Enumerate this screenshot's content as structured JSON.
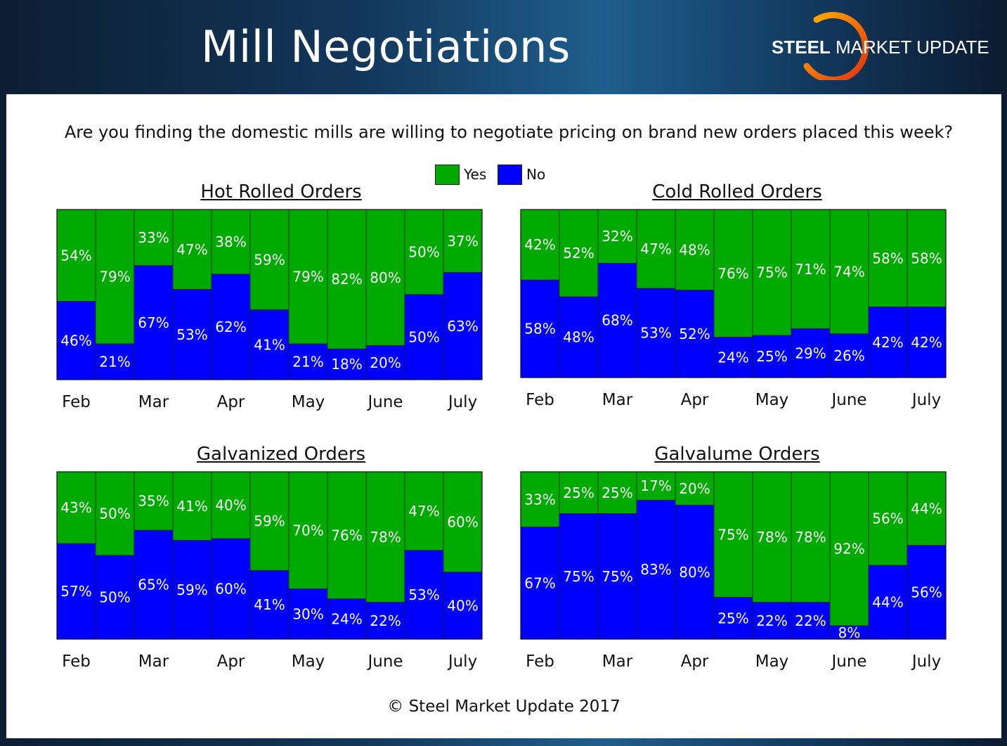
{
  "slide": {
    "title": "Mill Negotiations",
    "logo_bold": "STEEL",
    "logo_rest": " MARKET UPDATE"
  },
  "question": "Are you finding the domestic mills are willing to negotiate pricing on brand new orders placed this week?",
  "legend": {
    "yes_label": "Yes",
    "no_label": "No"
  },
  "copyright": "© Steel Market Update 2017",
  "colors": {
    "yes": "#00AA00",
    "no": "#0000FF",
    "yes_border": "#1f4d1f",
    "no_border": "#1f1f4d"
  },
  "chart_data": [
    {
      "type": "bar",
      "stacked": true,
      "title": "Hot Rolled Orders",
      "month_labels": [
        "Feb",
        "Mar",
        "Apr",
        "May",
        "June",
        "July"
      ],
      "series": [
        {
          "name": "No",
          "values": [
            46,
            21,
            67,
            53,
            62,
            41,
            21,
            18,
            20,
            50,
            63
          ]
        },
        {
          "name": "Yes",
          "values": [
            54,
            79,
            33,
            47,
            38,
            59,
            79,
            82,
            80,
            50,
            37
          ]
        }
      ],
      "ylim": [
        0,
        100
      ]
    },
    {
      "type": "bar",
      "stacked": true,
      "title": "Cold Rolled Orders",
      "month_labels": [
        "Feb",
        "Mar",
        "Apr",
        "May",
        "June",
        "July"
      ],
      "series": [
        {
          "name": "No",
          "values": [
            58,
            48,
            68,
            53,
            52,
            24,
            25,
            29,
            26,
            42,
            42
          ]
        },
        {
          "name": "Yes",
          "values": [
            42,
            52,
            32,
            47,
            48,
            76,
            75,
            71,
            74,
            58,
            58
          ]
        }
      ],
      "ylim": [
        0,
        100
      ]
    },
    {
      "type": "bar",
      "stacked": true,
      "title": "Galvanized Orders",
      "month_labels": [
        "Feb",
        "Mar",
        "Apr",
        "May",
        "June",
        "July"
      ],
      "series": [
        {
          "name": "No",
          "values": [
            57,
            50,
            65,
            59,
            60,
            41,
            30,
            24,
            22,
            53,
            40
          ]
        },
        {
          "name": "Yes",
          "values": [
            43,
            50,
            35,
            41,
            40,
            59,
            70,
            76,
            78,
            47,
            60
          ]
        }
      ],
      "ylim": [
        0,
        100
      ]
    },
    {
      "type": "bar",
      "stacked": true,
      "title": "Galvalume Orders",
      "month_labels": [
        "Feb",
        "Mar",
        "Apr",
        "May",
        "June",
        "July"
      ],
      "series": [
        {
          "name": "No",
          "values": [
            67,
            75,
            75,
            83,
            80,
            25,
            22,
            22,
            8,
            44,
            56
          ]
        },
        {
          "name": "Yes",
          "values": [
            33,
            25,
            25,
            17,
            20,
            75,
            78,
            78,
            92,
            56,
            44
          ]
        }
      ],
      "ylim": [
        0,
        100
      ]
    }
  ]
}
